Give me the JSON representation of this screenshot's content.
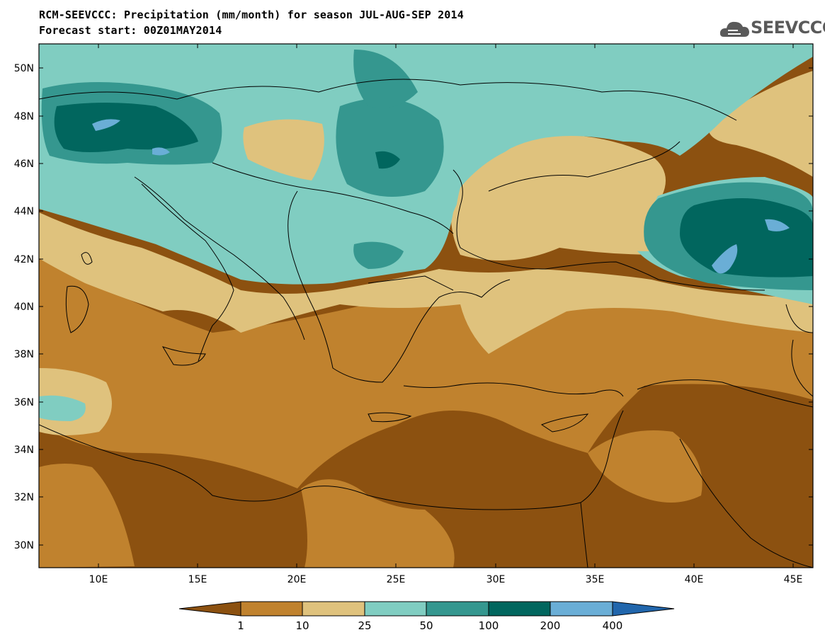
{
  "title_line1": "RCM-SEEVCCC: Precipitation (mm/month) for season JUL-AUG-SEP 2014",
  "title_line2": "Forecast start: 00Z01MAY2014",
  "logo_text": "SEEVCCC",
  "logo_icon": "cloud-icon",
  "map": {
    "lon_range": [
      7,
      46
    ],
    "lat_range": [
      29,
      51
    ],
    "lat_ticks": [
      "50N",
      "48N",
      "46N",
      "44N",
      "42N",
      "40N",
      "38N",
      "36N",
      "34N",
      "32N",
      "30N"
    ],
    "lon_ticks": [
      "10E",
      "15E",
      "20E",
      "25E",
      "30E",
      "35E",
      "40E",
      "45E"
    ]
  },
  "colorbar": {
    "labels": [
      "1",
      "10",
      "25",
      "50",
      "100",
      "200",
      "400"
    ],
    "colors": [
      "#8c5110",
      "#c0822e",
      "#dfc27d",
      "#80cdc1",
      "#35978f",
      "#01665e",
      "#6aaed6",
      "#2166ac"
    ]
  }
}
